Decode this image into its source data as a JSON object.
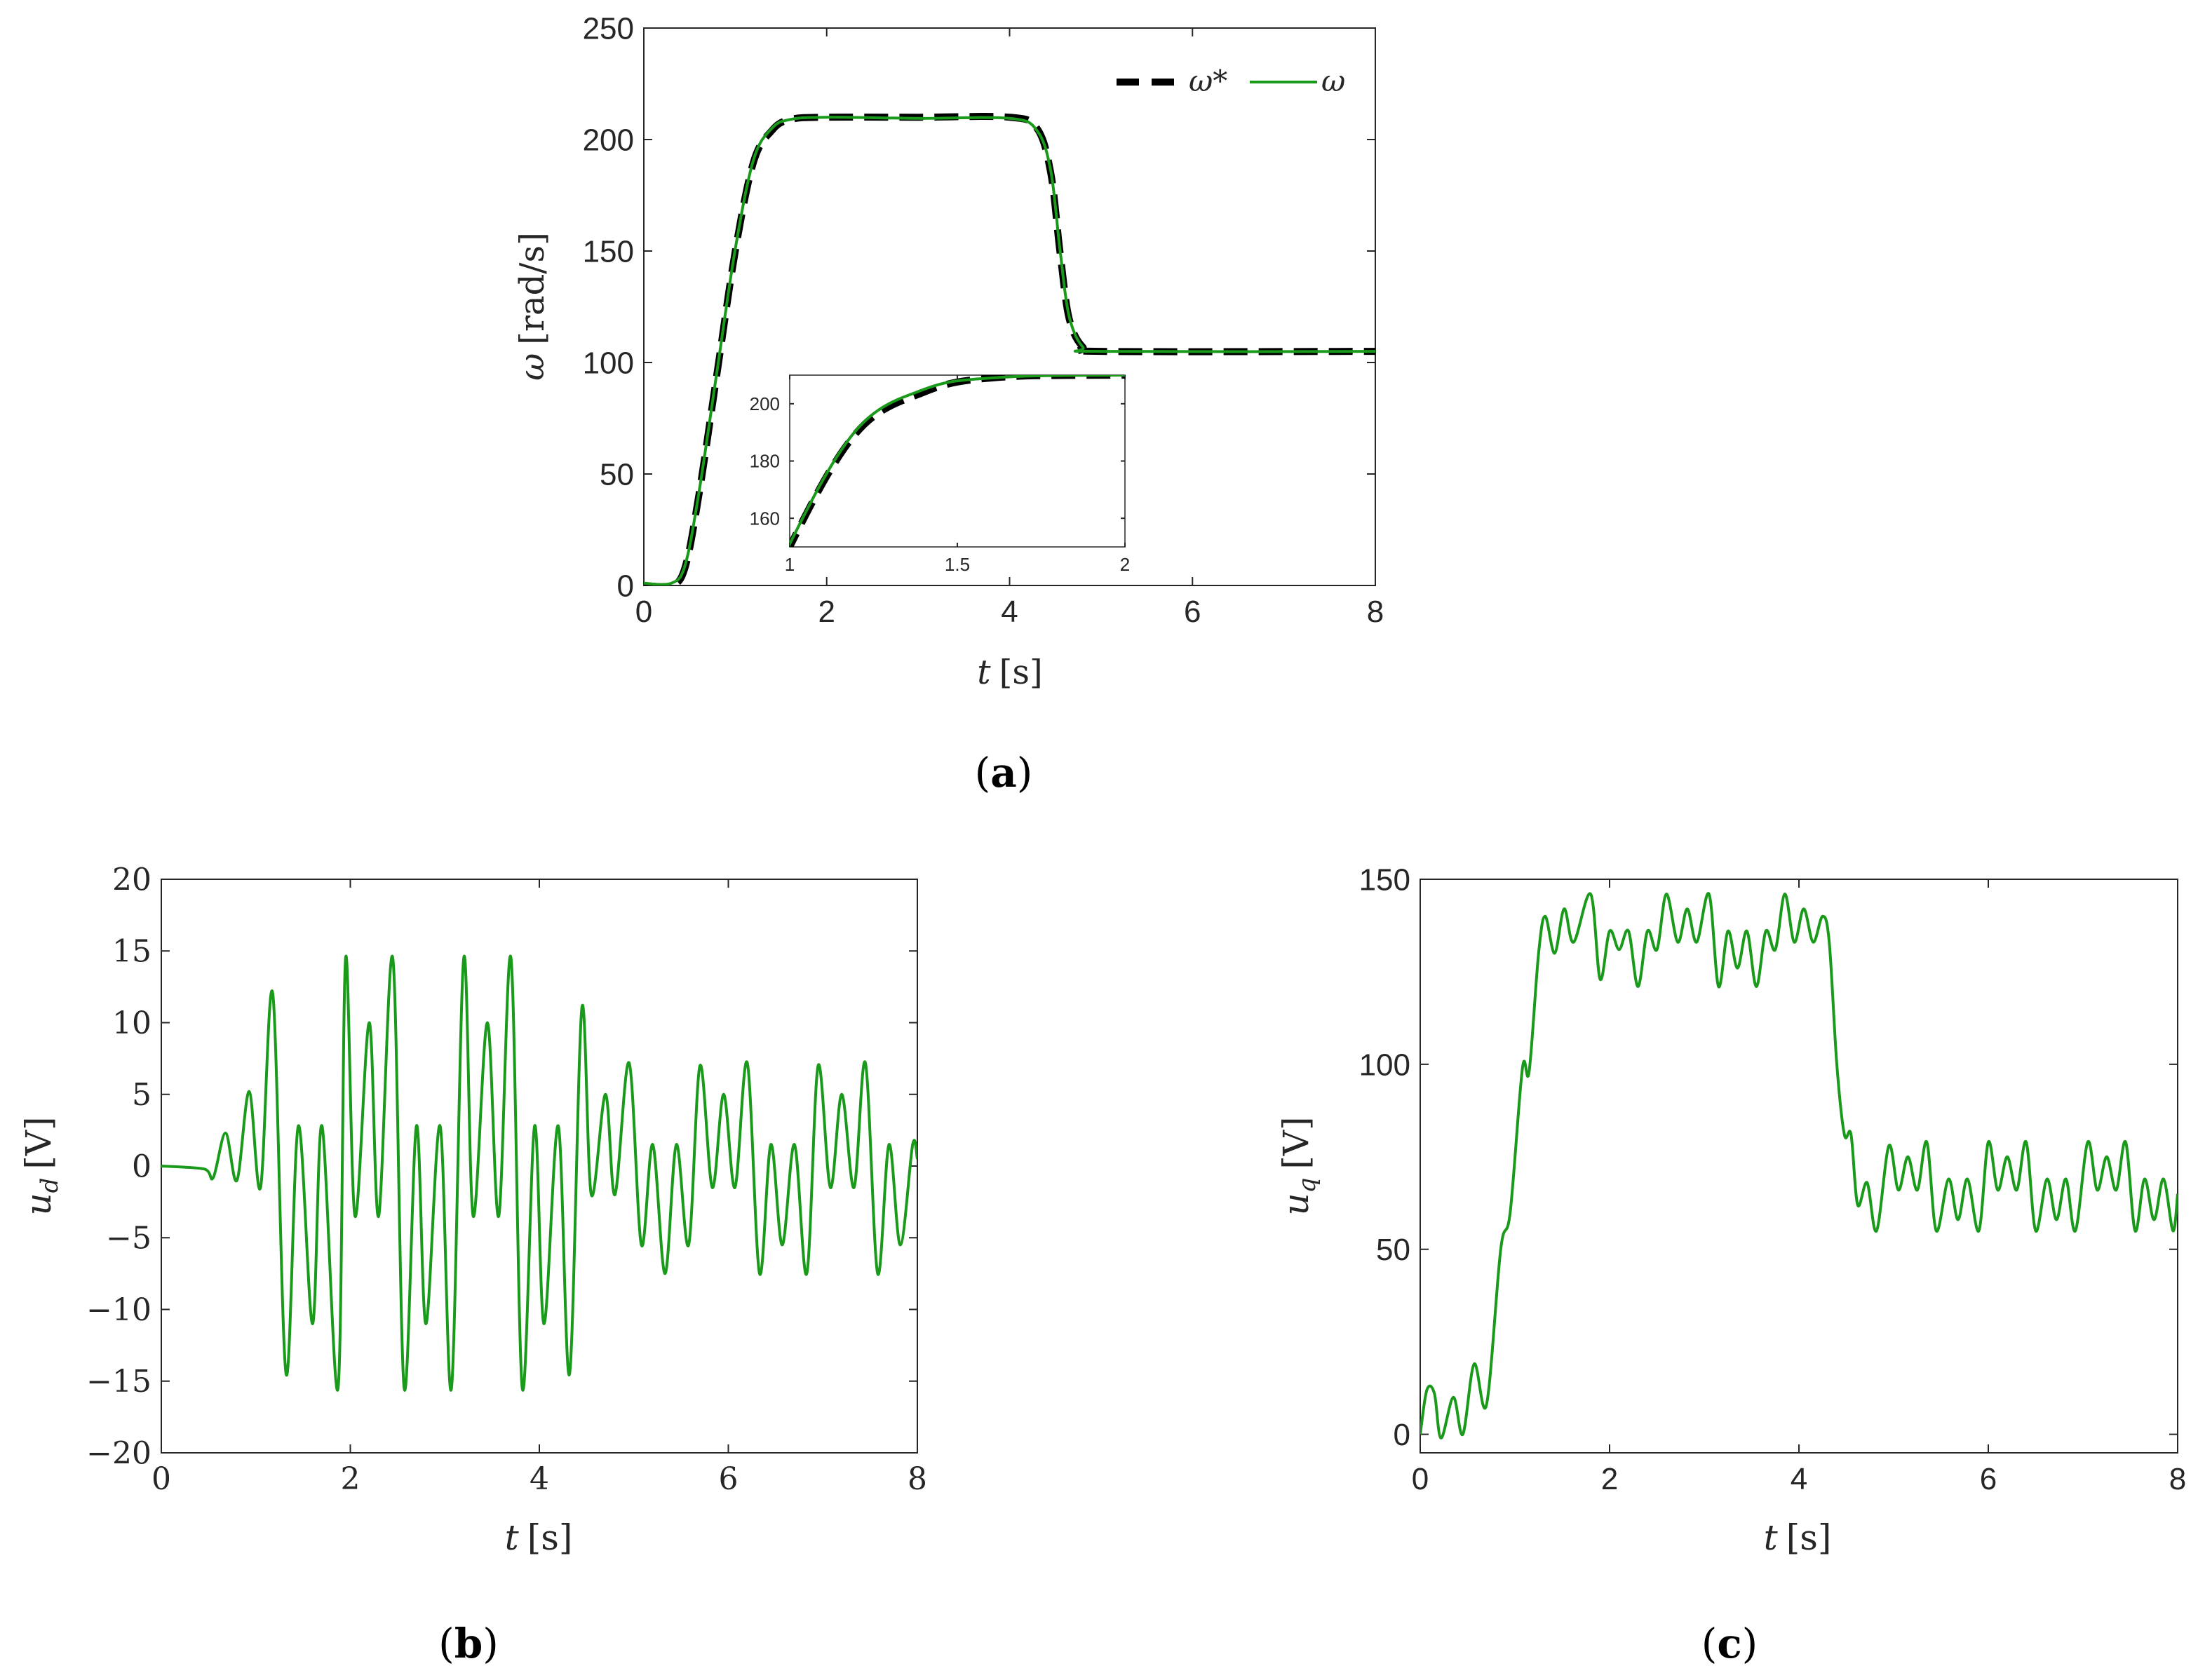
{
  "colors": {
    "measured": "#1a9a1a",
    "reference": "#000000",
    "axis": "#262626"
  },
  "chart_data": [
    {
      "id": "a",
      "type": "line",
      "panel_label": "a",
      "xlabel": {
        "symbol": "t",
        "unit": "[s]"
      },
      "ylabel": {
        "symbol": "ω",
        "unit": "[rad/s]"
      },
      "xlim": [
        0,
        8
      ],
      "ylim": [
        0,
        250
      ],
      "xticks": [
        "0",
        "2",
        "4",
        "6",
        "8"
      ],
      "yticks": [
        "0",
        "50",
        "100",
        "150",
        "200",
        "250"
      ],
      "legend": {
        "placement": "top-right",
        "entries": [
          "ω*",
          "ω"
        ]
      },
      "series": [
        {
          "name": "ω*",
          "style": "dashed",
          "points": [
            [
              0,
              0
            ],
            [
              0.3,
              0
            ],
            [
              0.45,
              8
            ],
            [
              0.6,
              40
            ],
            [
              0.8,
              95
            ],
            [
              1.0,
              150
            ],
            [
              1.2,
              190
            ],
            [
              1.4,
              204
            ],
            [
              1.6,
              209
            ],
            [
              2.0,
              210
            ],
            [
              3.0,
              210
            ],
            [
              4.0,
              210
            ],
            [
              4.3,
              205
            ],
            [
              4.45,
              185
            ],
            [
              4.55,
              150
            ],
            [
              4.65,
              120
            ],
            [
              4.8,
              107
            ],
            [
              5.0,
              105
            ],
            [
              8.0,
              105
            ]
          ]
        },
        {
          "name": "ω",
          "style": "solid",
          "points": [
            [
              0,
              1
            ],
            [
              0.3,
              1
            ],
            [
              0.45,
              9
            ],
            [
              0.6,
              41
            ],
            [
              0.8,
              96
            ],
            [
              1.0,
              151
            ],
            [
              1.2,
              191
            ],
            [
              1.4,
              205
            ],
            [
              1.6,
              209
            ],
            [
              2.0,
              210
            ],
            [
              3.0,
              209.5
            ],
            [
              4.0,
              209.5
            ],
            [
              4.3,
              204
            ],
            [
              4.45,
              186
            ],
            [
              4.55,
              151
            ],
            [
              4.65,
              121
            ],
            [
              4.8,
              107
            ],
            [
              5.0,
              105
            ],
            [
              8.0,
              105
            ]
          ]
        }
      ],
      "inset": {
        "xlim": [
          1,
          2
        ],
        "ylim": [
          150,
          210
        ],
        "xticks": [
          "1",
          "1.5",
          "2"
        ],
        "yticks": [
          "160",
          "180",
          "200"
        ],
        "series_ref": "main"
      }
    },
    {
      "id": "b",
      "type": "line",
      "panel_label": "b",
      "xlabel": {
        "symbol": "t",
        "unit": "[s]"
      },
      "ylabel": {
        "symbol": "u",
        "subscript": "d",
        "unit": "[V]"
      },
      "xlim": [
        0,
        8
      ],
      "ylim": [
        -20,
        20
      ],
      "xticks": [
        "0",
        "2",
        "4",
        "6",
        "8"
      ],
      "yticks": [
        "−20",
        "−15",
        "−10",
        "−5",
        "0",
        "5",
        "10",
        "15",
        "20"
      ],
      "series": [
        {
          "name": "",
          "style": "solid",
          "points": [
            [
              0,
              0
            ],
            [
              0.45,
              -0.2
            ],
            [
              0.55,
              -0.8
            ],
            [
              0.68,
              2.3
            ],
            [
              0.8,
              -1
            ],
            [
              0.93,
              5.2
            ],
            [
              1.05,
              -1.5
            ],
            [
              1.18,
              12
            ],
            [
              1.32,
              -14.5
            ],
            [
              1.45,
              2.8
            ],
            [
              1.6,
              -11
            ],
            [
              1.7,
              2.8
            ],
            [
              1.87,
              -15.5
            ],
            [
              1.95,
              14.5
            ],
            [
              2.05,
              -3.5
            ],
            [
              2.2,
              10
            ],
            [
              2.3,
              -3.5
            ],
            [
              2.45,
              14.5
            ],
            [
              2.57,
              -15.5
            ],
            [
              2.7,
              2.8
            ],
            [
              2.8,
              -11
            ],
            [
              2.95,
              2.8
            ],
            [
              3.07,
              -15.5
            ],
            [
              3.2,
              14.5
            ],
            [
              3.3,
              -3.5
            ],
            [
              3.45,
              10
            ],
            [
              3.57,
              -3.5
            ],
            [
              3.7,
              14.5
            ],
            [
              3.82,
              -15.5
            ],
            [
              3.95,
              2.8
            ],
            [
              4.05,
              -11
            ],
            [
              4.2,
              2.8
            ],
            [
              4.32,
              -14.5
            ],
            [
              4.45,
              11
            ],
            [
              4.55,
              -2
            ],
            [
              4.7,
              5
            ],
            [
              4.8,
              -2
            ],
            [
              4.95,
              7.2
            ],
            [
              5.08,
              -5.5
            ],
            [
              5.2,
              1.5
            ],
            [
              5.33,
              -7.5
            ],
            [
              5.45,
              1.5
            ],
            [
              5.58,
              -5.5
            ],
            [
              5.7,
              7
            ],
            [
              5.83,
              -1.5
            ],
            [
              5.95,
              5
            ],
            [
              6.07,
              -1.5
            ],
            [
              6.2,
              7.2
            ],
            [
              6.33,
              -7.5
            ],
            [
              6.45,
              1.5
            ],
            [
              6.57,
              -5.5
            ],
            [
              6.7,
              1.5
            ],
            [
              6.83,
              -7.5
            ],
            [
              6.95,
              7
            ],
            [
              7.08,
              -1.5
            ],
            [
              7.2,
              5
            ],
            [
              7.33,
              -1.5
            ],
            [
              7.45,
              7.2
            ],
            [
              7.58,
              -7.5
            ],
            [
              7.7,
              1.5
            ],
            [
              7.82,
              -5.5
            ],
            [
              7.95,
              1.5
            ],
            [
              8.0,
              0.5
            ]
          ]
        }
      ]
    },
    {
      "id": "c",
      "type": "line",
      "panel_label": "c",
      "xlabel": {
        "symbol": "t",
        "unit": "[s]"
      },
      "ylabel": {
        "symbol": "u",
        "subscript": "q",
        "unit": "[V]"
      },
      "xlim": [
        0,
        8
      ],
      "ylim": [
        -5,
        150
      ],
      "xticks": [
        "0",
        "2",
        "4",
        "6",
        "8"
      ],
      "yticks": [
        "0",
        "50",
        "100",
        "150"
      ],
      "series": [
        {
          "name": "",
          "style": "solid",
          "points": [
            [
              0,
              0
            ],
            [
              0.07,
              12
            ],
            [
              0.15,
              11
            ],
            [
              0.22,
              -1
            ],
            [
              0.35,
              10
            ],
            [
              0.45,
              0
            ],
            [
              0.57,
              19
            ],
            [
              0.7,
              8
            ],
            [
              0.85,
              50
            ],
            [
              0.95,
              60
            ],
            [
              1.08,
              99
            ],
            [
              1.15,
              98
            ],
            [
              1.25,
              130
            ],
            [
              1.32,
              140
            ],
            [
              1.42,
              130
            ],
            [
              1.52,
              142
            ],
            [
              1.62,
              133
            ],
            [
              1.8,
              146
            ],
            [
              1.9,
              123
            ],
            [
              2.0,
              136
            ],
            [
              2.1,
              131
            ],
            [
              2.2,
              136
            ],
            [
              2.3,
              121
            ],
            [
              2.4,
              136
            ],
            [
              2.5,
              131
            ],
            [
              2.6,
              146
            ],
            [
              2.72,
              133
            ],
            [
              2.82,
              142
            ],
            [
              2.92,
              133
            ],
            [
              3.05,
              146
            ],
            [
              3.15,
              121
            ],
            [
              3.25,
              136
            ],
            [
              3.35,
              126
            ],
            [
              3.45,
              136
            ],
            [
              3.55,
              121
            ],
            [
              3.65,
              136
            ],
            [
              3.75,
              131
            ],
            [
              3.85,
              146
            ],
            [
              3.95,
              133
            ],
            [
              4.05,
              142
            ],
            [
              4.15,
              133
            ],
            [
              4.25,
              140
            ],
            [
              4.32,
              133
            ],
            [
              4.4,
              100
            ],
            [
              4.48,
              81
            ],
            [
              4.55,
              81
            ],
            [
              4.62,
              62
            ],
            [
              4.72,
              68
            ],
            [
              4.82,
              55
            ],
            [
              4.95,
              78
            ],
            [
              5.05,
              66
            ],
            [
              5.15,
              75
            ],
            [
              5.25,
              66
            ],
            [
              5.35,
              79
            ],
            [
              5.45,
              55
            ],
            [
              5.58,
              69
            ],
            [
              5.68,
              58
            ],
            [
              5.78,
              69
            ],
            [
              5.9,
              55
            ],
            [
              6.0,
              79
            ],
            [
              6.1,
              66
            ],
            [
              6.2,
              75
            ],
            [
              6.3,
              66
            ],
            [
              6.4,
              79
            ],
            [
              6.5,
              55
            ],
            [
              6.62,
              69
            ],
            [
              6.72,
              58
            ],
            [
              6.82,
              69
            ],
            [
              6.92,
              55
            ],
            [
              7.05,
              79
            ],
            [
              7.15,
              66
            ],
            [
              7.25,
              75
            ],
            [
              7.35,
              66
            ],
            [
              7.45,
              79
            ],
            [
              7.55,
              55
            ],
            [
              7.65,
              69
            ],
            [
              7.75,
              58
            ],
            [
              7.85,
              69
            ],
            [
              7.95,
              55
            ],
            [
              8.0,
              65
            ]
          ]
        }
      ]
    }
  ]
}
